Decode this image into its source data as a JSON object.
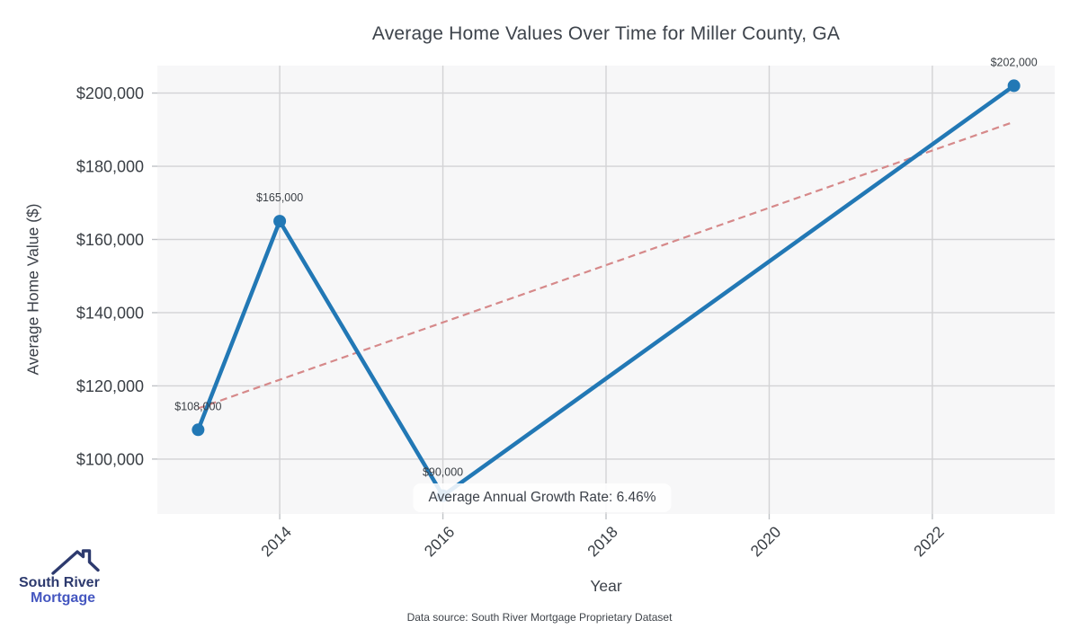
{
  "chart_data": {
    "type": "line",
    "title": "Average Home Values Over Time for Miller County, GA",
    "xlabel": "Year",
    "ylabel": "Average Home Value ($)",
    "x": [
      2013,
      2014,
      2016,
      2023
    ],
    "values": [
      108000,
      165000,
      90000,
      202000
    ],
    "point_labels": [
      "$108,000",
      "$165,000",
      "$90,000",
      "$202,000"
    ],
    "xlim": [
      2012.5,
      2023.5
    ],
    "ylim": [
      85000,
      207500
    ],
    "x_ticks": [
      2014,
      2016,
      2018,
      2020,
      2022
    ],
    "x_tick_labels": [
      "2014",
      "2016",
      "2018",
      "2020",
      "2022"
    ],
    "y_ticks": [
      100000,
      120000,
      140000,
      160000,
      180000,
      200000
    ],
    "y_tick_labels": [
      "$100,000",
      "$120,000",
      "$140,000",
      "$160,000",
      "$180,000",
      "$200,000"
    ],
    "grid": true,
    "legend": "none",
    "trend_line": {
      "x": [
        2013,
        2023
      ],
      "values": [
        113850,
        192130
      ],
      "style": "dashed"
    },
    "annotation": "Average Annual Growth Rate: 6.46%",
    "colors": {
      "series": "#2278b5",
      "trend": "#d6898a",
      "plot_bg": "#f7f7f8",
      "grid": "#d3d3d5",
      "tick_mark": "#c0c3c7",
      "text": "#3a3f45"
    }
  },
  "footer": {
    "data_source": "Data source: South River Mortgage Proprietary Dataset"
  },
  "logo": {
    "line1": "South River",
    "line2": "Mortgage",
    "colors": {
      "primary": "#2d3a6e",
      "secondary": "#4557c0"
    }
  }
}
